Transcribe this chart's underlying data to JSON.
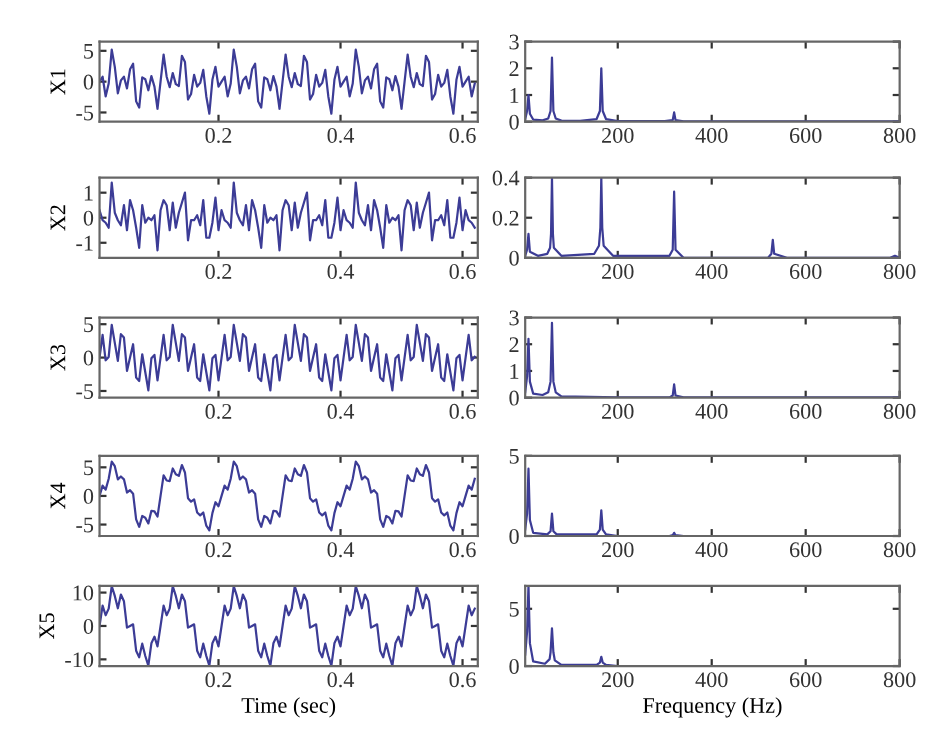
{
  "chart_data": [
    {
      "type": "line",
      "ylabel": "X1",
      "color": "#3c3c96",
      "xlim": [
        0.005,
        0.625
      ],
      "xticks": [
        0.2,
        0.4,
        0.6
      ],
      "ylim": [
        -6.5,
        6.5
      ],
      "yticks": [
        -5,
        0,
        5
      ],
      "x": [
        0.005,
        0.01,
        0.015,
        0.02,
        0.025,
        0.03,
        0.035,
        0.04,
        0.045,
        0.05,
        0.055,
        0.06,
        0.065,
        0.07,
        0.075,
        0.08,
        0.085,
        0.09,
        0.095,
        0.1,
        0.105,
        0.11,
        0.115,
        0.12,
        0.125,
        0.13,
        0.135,
        0.14,
        0.145,
        0.15,
        0.155,
        0.16,
        0.165,
        0.17,
        0.175,
        0.18,
        0.185,
        0.19,
        0.195,
        0.2,
        0.205,
        0.21,
        0.215,
        0.22,
        0.225,
        0.23,
        0.235,
        0.24,
        0.245,
        0.25,
        0.255,
        0.26,
        0.265,
        0.27,
        0.275,
        0.28,
        0.285,
        0.29,
        0.295,
        0.3,
        0.305,
        0.31,
        0.315,
        0.32,
        0.325,
        0.33,
        0.335,
        0.34,
        0.345,
        0.35,
        0.355,
        0.36,
        0.365,
        0.37,
        0.375,
        0.38,
        0.385,
        0.39,
        0.395,
        0.4,
        0.405,
        0.41,
        0.415,
        0.42,
        0.425,
        0.43,
        0.435,
        0.44,
        0.445,
        0.45,
        0.455,
        0.46,
        0.465,
        0.47,
        0.475,
        0.48,
        0.485,
        0.49,
        0.495,
        0.5,
        0.505,
        0.51,
        0.515,
        0.52,
        0.525,
        0.53,
        0.535,
        0.54,
        0.545,
        0.55,
        0.555,
        0.56,
        0.565,
        0.57,
        0.575,
        0.58,
        0.585,
        0.59,
        0.595,
        0.6,
        0.605,
        0.61,
        0.615,
        0.62
      ],
      "values": [
        0,
        0.8,
        -2.4,
        -0.3,
        5.2,
        2.4,
        -1.9,
        0.2,
        0.8,
        -1.1,
        2,
        2.9,
        -3.2,
        -4.2,
        0.7,
        0.4,
        -1.4,
        0.9,
        -0.8,
        -4.4,
        0,
        4.4,
        0.8,
        -0.9,
        1.4,
        -0.4,
        -0.7,
        4.2,
        3.2,
        -2.9,
        -2,
        1.1,
        -0.8,
        -0.2,
        1.9,
        -2.4,
        -5.2,
        0.3,
        2.4,
        -0.8,
        0,
        0.8,
        -2.4,
        -0.3,
        5.2,
        2.4,
        -1.9,
        0.2,
        0.8,
        -1.1,
        2,
        2.9,
        -3.2,
        -4.2,
        0.7,
        0.4,
        -1.4,
        0.9,
        -0.8,
        -4.4,
        0,
        4.4,
        0.8,
        -0.9,
        1.4,
        -0.4,
        -0.7,
        4.2,
        3.2,
        -2.9,
        -2,
        1.1,
        -0.8,
        -0.2,
        1.9,
        -2.4,
        -5.2,
        0.3,
        2.4,
        -0.8,
        0,
        0.8,
        -2.4,
        -0.3,
        5.2,
        2.4,
        -1.9,
        0.2,
        0.8,
        -1.1,
        2,
        2.9,
        -3.2,
        -4.2,
        0.7,
        0.4,
        -1.4,
        0.9,
        -0.8,
        -4.4,
        0,
        4.4,
        0.8,
        -0.9,
        1.4,
        -0.4,
        -0.7,
        4.2,
        3.2,
        -2.9,
        -2,
        1.1,
        -0.8,
        -0.2,
        1.9,
        -2.4,
        -5.2,
        0.3,
        2.4,
        -0.8,
        0,
        0.8,
        -2.4,
        -0.3
      ]
    },
    {
      "type": "line",
      "color": "#3c3c96",
      "xlim": [
        3,
        800
      ],
      "xticks": [
        200,
        400,
        600,
        800
      ],
      "ylim": [
        0,
        3
      ],
      "yticks": [
        0,
        1,
        2,
        3
      ],
      "x": [
        3,
        7,
        10,
        13,
        20,
        40,
        52,
        57,
        60,
        63,
        68,
        80,
        120,
        155,
        162,
        165,
        168,
        175,
        200,
        300,
        317,
        320,
        323,
        340,
        800
      ],
      "values": [
        0.1,
        0.4,
        1.0,
        0.3,
        0.08,
        0.05,
        0.12,
        0.4,
        2.4,
        0.4,
        0.12,
        0.04,
        0.03,
        0.1,
        0.4,
        2.0,
        0.4,
        0.1,
        0.02,
        0.02,
        0.06,
        0.35,
        0.06,
        0.01,
        0.01
      ]
    },
    {
      "type": "line",
      "ylabel": "X2",
      "color": "#3c3c96",
      "xlim": [
        0.005,
        0.625
      ],
      "xticks": [
        0.2,
        0.4,
        0.6
      ],
      "ylim": [
        -1.6,
        1.6
      ],
      "yticks": [
        -1,
        0,
        1
      ],
      "x": [
        0.005,
        0.01,
        0.015,
        0.02,
        0.025,
        0.03,
        0.035,
        0.04,
        0.045,
        0.05,
        0.055,
        0.06,
        0.065,
        0.07,
        0.075,
        0.08,
        0.085,
        0.09,
        0.095,
        0.1,
        0.105,
        0.11,
        0.115,
        0.12,
        0.125,
        0.13,
        0.135,
        0.14,
        0.145,
        0.15,
        0.155,
        0.16,
        0.165,
        0.17,
        0.175,
        0.18,
        0.185,
        0.19,
        0.195,
        0.2,
        0.205,
        0.21,
        0.215,
        0.22,
        0.225,
        0.23,
        0.235,
        0.24,
        0.245,
        0.25,
        0.255,
        0.26,
        0.265,
        0.27,
        0.275,
        0.28,
        0.285,
        0.29,
        0.295,
        0.3,
        0.305,
        0.31,
        0.315,
        0.32,
        0.325,
        0.33,
        0.335,
        0.34,
        0.345,
        0.35,
        0.355,
        0.36,
        0.365,
        0.37,
        0.375,
        0.38,
        0.385,
        0.39,
        0.395,
        0.4,
        0.405,
        0.41,
        0.415,
        0.42,
        0.425,
        0.43,
        0.435,
        0.44,
        0.445,
        0.45,
        0.455,
        0.46,
        0.465,
        0.47,
        0.475,
        0.48,
        0.485,
        0.49,
        0.495,
        0.5,
        0.505,
        0.51,
        0.515,
        0.52,
        0.525,
        0.53,
        0.535,
        0.54,
        0.545,
        0.55,
        0.555,
        0.56,
        0.565,
        0.57,
        0.575,
        0.58,
        0.585,
        0.59,
        0.595,
        0.6,
        0.605,
        0.61,
        0.615,
        0.62
      ],
      "values": [
        0.3,
        -0.1,
        -0.2,
        -0.4,
        1.4,
        0.2,
        -0.1,
        -0.3,
        0.5,
        -0.5,
        0.7,
        0.3,
        -0.4,
        -1.2,
        0.5,
        -0.2,
        0,
        -0.1,
        0.1,
        -1.3,
        0.3,
        0.7,
        0.5,
        -0.5,
        0.6,
        -0.4,
        0.2,
        0.6,
        1.0,
        -0.9,
        -0.1,
        -0.1,
        0.1,
        -0.3,
        0.7,
        -0.8,
        -0.8,
        -0.2,
        0.8,
        -0.5,
        0.3,
        -0.1,
        -0.2,
        -0.4,
        1.4,
        0.2,
        -0.1,
        -0.3,
        0.5,
        -0.5,
        0.7,
        0.3,
        -0.4,
        -1.2,
        0.5,
        -0.2,
        0,
        -0.1,
        0.1,
        -1.3,
        0.3,
        0.7,
        0.5,
        -0.5,
        0.6,
        -0.4,
        0.2,
        0.6,
        1.0,
        -0.9,
        -0.1,
        -0.1,
        0.1,
        -0.3,
        0.7,
        -0.8,
        -0.8,
        -0.2,
        0.8,
        -0.5,
        0.3,
        -0.1,
        -0.2,
        -0.4,
        1.4,
        0.2,
        -0.1,
        -0.3,
        0.5,
        -0.5,
        0.7,
        0.3,
        -0.4,
        -1.2,
        0.5,
        -0.2,
        0,
        -0.1,
        0.1,
        -1.3,
        0.3,
        0.7,
        0.5,
        -0.5,
        0.6,
        -0.4,
        0.2,
        0.6,
        1.0,
        -0.9,
        -0.1,
        -0.1,
        0.1,
        -0.3,
        0.7,
        -0.8,
        -0.8,
        -0.2,
        0.8,
        -0.5,
        0.3,
        -0.1,
        -0.2,
        -0.4
      ]
    },
    {
      "type": "line",
      "color": "#3c3c96",
      "xlim": [
        3,
        800
      ],
      "xticks": [
        200,
        400,
        600,
        800
      ],
      "ylim": [
        0,
        0.4
      ],
      "yticks": [
        0,
        0.2,
        0.4
      ],
      "x": [
        3,
        7,
        10,
        13,
        30,
        50,
        56,
        58,
        60,
        62,
        64,
        80,
        150,
        160,
        163,
        165,
        167,
        170,
        190,
        310,
        317,
        320,
        323,
        340,
        520,
        527,
        530,
        533,
        560,
        780,
        790,
        800
      ],
      "values": [
        0.01,
        0.04,
        0.12,
        0.03,
        0.01,
        0.02,
        0.05,
        0.12,
        0.4,
        0.12,
        0.05,
        0.01,
        0.02,
        0.06,
        0.15,
        0.4,
        0.15,
        0.06,
        0.01,
        0.01,
        0.04,
        0.33,
        0.04,
        0,
        0,
        0.02,
        0.09,
        0.02,
        0,
        0,
        0.01,
        0
      ]
    },
    {
      "type": "line",
      "ylabel": "X3",
      "color": "#3c3c96",
      "xlim": [
        0.005,
        0.625
      ],
      "xticks": [
        0.2,
        0.4,
        0.6
      ],
      "ylim": [
        -6,
        6
      ],
      "yticks": [
        -5,
        0,
        5
      ],
      "x": [
        0.005,
        0.01,
        0.015,
        0.02,
        0.025,
        0.03,
        0.035,
        0.04,
        0.045,
        0.05,
        0.055,
        0.06,
        0.065,
        0.07,
        0.075,
        0.08,
        0.085,
        0.09,
        0.095,
        0.1,
        0.105,
        0.11,
        0.115,
        0.12,
        0.125,
        0.13,
        0.135,
        0.14,
        0.145,
        0.15,
        0.155,
        0.16,
        0.165,
        0.17,
        0.175,
        0.18,
        0.185,
        0.19,
        0.195,
        0.2,
        0.205,
        0.21,
        0.215,
        0.22,
        0.225,
        0.23,
        0.235,
        0.24,
        0.245,
        0.25,
        0.255,
        0.26,
        0.265,
        0.27,
        0.275,
        0.28,
        0.285,
        0.29,
        0.295,
        0.3,
        0.305,
        0.31,
        0.315,
        0.32,
        0.325,
        0.33,
        0.335,
        0.34,
        0.345,
        0.35,
        0.355,
        0.36,
        0.365,
        0.37,
        0.375,
        0.38,
        0.385,
        0.39,
        0.395,
        0.4,
        0.405,
        0.41,
        0.415,
        0.42,
        0.425,
        0.43,
        0.435,
        0.44,
        0.445,
        0.45,
        0.455,
        0.46,
        0.465,
        0.47,
        0.475,
        0.48,
        0.485,
        0.49,
        0.495,
        0.5,
        0.505,
        0.51,
        0.515,
        0.52,
        0.525,
        0.53,
        0.535,
        0.54,
        0.545,
        0.55,
        0.555,
        0.56,
        0.565,
        0.57,
        0.575,
        0.58,
        0.585,
        0.59,
        0.595,
        0.6,
        0.605,
        0.61,
        0.615,
        0.62
      ],
      "values": [
        0,
        3.4,
        -0.4,
        0.1,
        4.9,
        2.2,
        -0.5,
        3.5,
        3.0,
        -2.0,
        0,
        2.0,
        -3.0,
        -3.5,
        0.5,
        -2.2,
        -4.9,
        -0.1,
        0.4,
        -3.4,
        0,
        3.4,
        -0.4,
        0.1,
        4.9,
        2.2,
        -0.5,
        3.5,
        3.0,
        -2.0,
        0,
        2.0,
        -3.0,
        -3.5,
        0.5,
        -2.2,
        -4.9,
        -0.1,
        0.4,
        -3.4,
        0,
        3.4,
        -0.4,
        0.1,
        4.9,
        2.2,
        -0.5,
        3.5,
        3.0,
        -2.0,
        0,
        2.0,
        -3.0,
        -3.5,
        0.5,
        -2.2,
        -4.9,
        -0.1,
        0.4,
        -3.4,
        0,
        3.4,
        -0.4,
        0.1,
        4.9,
        2.2,
        -0.5,
        3.5,
        3.0,
        -2.0,
        0,
        2.0,
        -3.0,
        -3.5,
        0.5,
        -2.2,
        -4.9,
        -0.1,
        0.4,
        -3.4,
        0,
        3.4,
        -0.4,
        0.1,
        4.9,
        2.2,
        -0.5,
        3.5,
        3.0,
        -2.0,
        0,
        2.0,
        -3.0,
        -3.5,
        0.5,
        -2.2,
        -4.9,
        -0.1,
        0.4,
        -3.4,
        0,
        3.4,
        -0.4,
        0.1,
        4.9,
        2.2,
        -0.5,
        3.5,
        3.0,
        -2.0,
        0,
        2.0,
        -3.0,
        -3.5,
        0.5,
        -2.2,
        -4.9,
        -0.1,
        0.4,
        -3.4,
        0,
        3.4,
        -0.4,
        0.1
      ]
    },
    {
      "type": "line",
      "color": "#3c3c96",
      "xlim": [
        3,
        800
      ],
      "xticks": [
        200,
        400,
        600,
        800
      ],
      "ylim": [
        0,
        3
      ],
      "yticks": [
        0,
        1,
        2,
        3
      ],
      "x": [
        3,
        7,
        10,
        13,
        20,
        40,
        52,
        57,
        60,
        63,
        68,
        80,
        200,
        310,
        317,
        320,
        323,
        340,
        800
      ],
      "values": [
        0.2,
        0.8,
        2.2,
        0.6,
        0.15,
        0.1,
        0.2,
        0.6,
        2.8,
        0.6,
        0.2,
        0.05,
        0.01,
        0.01,
        0.08,
        0.5,
        0.08,
        0.01,
        0.01
      ]
    },
    {
      "type": "line",
      "ylabel": "X4",
      "color": "#3c3c96",
      "xlim": [
        0.005,
        0.625
      ],
      "xticks": [
        0.2,
        0.4,
        0.6
      ],
      "ylim": [
        -7,
        7
      ],
      "yticks": [
        -5,
        0,
        5
      ],
      "x": [
        0.005,
        0.01,
        0.015,
        0.02,
        0.025,
        0.03,
        0.035,
        0.04,
        0.045,
        0.05,
        0.055,
        0.06,
        0.065,
        0.07,
        0.075,
        0.08,
        0.085,
        0.09,
        0.095,
        0.1,
        0.105,
        0.11,
        0.115,
        0.12,
        0.125,
        0.13,
        0.135,
        0.14,
        0.145,
        0.15,
        0.155,
        0.16,
        0.165,
        0.17,
        0.175,
        0.18,
        0.185,
        0.19,
        0.195,
        0.2,
        0.205,
        0.21,
        0.215,
        0.22,
        0.225,
        0.23,
        0.235,
        0.24,
        0.245,
        0.25,
        0.255,
        0.26,
        0.265,
        0.27,
        0.275,
        0.28,
        0.285,
        0.29,
        0.295,
        0.3,
        0.305,
        0.31,
        0.315,
        0.32,
        0.325,
        0.33,
        0.335,
        0.34,
        0.345,
        0.35,
        0.355,
        0.36,
        0.365,
        0.37,
        0.375,
        0.38,
        0.385,
        0.39,
        0.395,
        0.4,
        0.405,
        0.41,
        0.415,
        0.42,
        0.425,
        0.43,
        0.435,
        0.44,
        0.445,
        0.45,
        0.455,
        0.46,
        0.465,
        0.47,
        0.475,
        0.48,
        0.485,
        0.49,
        0.495,
        0.5,
        0.505,
        0.51,
        0.515,
        0.52,
        0.525,
        0.53,
        0.535,
        0.54,
        0.545,
        0.55,
        0.555,
        0.56,
        0.565,
        0.57,
        0.575,
        0.58,
        0.585,
        0.59,
        0.595,
        0.6,
        0.605,
        0.61,
        0.615,
        0.62
      ],
      "values": [
        0,
        1.8,
        1.1,
        3.0,
        6.0,
        5.2,
        2.9,
        3.4,
        2.9,
        0.6,
        1.0,
        0.4,
        -4.1,
        -5.4,
        -3.5,
        -3.8,
        -4.8,
        -2.6,
        -2.7,
        -3.6,
        0,
        3.6,
        2.7,
        2.6,
        4.8,
        3.8,
        3.5,
        5.4,
        4.1,
        -0.4,
        -1.0,
        -0.6,
        -2.9,
        -3.4,
        -2.9,
        -5.2,
        -6.0,
        -3.0,
        -1.1,
        -1.8,
        0,
        1.8,
        1.1,
        3.0,
        6.0,
        5.2,
        2.9,
        3.4,
        2.9,
        0.6,
        1.0,
        0.4,
        -4.1,
        -5.4,
        -3.5,
        -3.8,
        -4.8,
        -2.6,
        -2.7,
        -3.6,
        0,
        3.6,
        2.7,
        2.6,
        4.8,
        3.8,
        3.5,
        5.4,
        4.1,
        -0.4,
        -1.0,
        -0.6,
        -2.9,
        -3.4,
        -2.9,
        -5.2,
        -6.0,
        -3.0,
        -1.1,
        -1.8,
        0,
        1.8,
        1.1,
        3.0,
        6.0,
        5.2,
        2.9,
        3.4,
        2.9,
        0.6,
        1.0,
        0.4,
        -4.1,
        -5.4,
        -3.5,
        -3.8,
        -4.8,
        -2.6,
        -2.7,
        -3.6,
        0,
        3.6,
        2.7,
        2.6,
        4.8,
        3.8,
        3.5,
        5.4,
        4.1,
        -0.4,
        -1.0,
        -0.6,
        -2.9,
        -3.4,
        -2.9,
        -5.2,
        -6.0,
        -3.0,
        -1.1,
        -1.8,
        0,
        1.8,
        1.1,
        3.0
      ]
    },
    {
      "type": "line",
      "color": "#3c3c96",
      "xlim": [
        3,
        800
      ],
      "xticks": [
        200,
        400,
        600,
        800
      ],
      "ylim": [
        0,
        5
      ],
      "yticks": [
        0,
        5
      ],
      "x": [
        3,
        7,
        10,
        13,
        20,
        50,
        57,
        60,
        63,
        70,
        155,
        162,
        165,
        168,
        175,
        200,
        310,
        317,
        320,
        323,
        340,
        800
      ],
      "values": [
        0.4,
        1.4,
        4.2,
        1.0,
        0.2,
        0.1,
        0.3,
        1.4,
        0.3,
        0.1,
        0.1,
        0.4,
        1.6,
        0.4,
        0.1,
        0,
        0,
        0.05,
        0.2,
        0.05,
        0,
        0
      ]
    },
    {
      "type": "line",
      "ylabel": "X5",
      "xlabel": "Time (sec)",
      "color": "#3c3c96",
      "xlim": [
        0.005,
        0.625
      ],
      "xticks": [
        0.2,
        0.4,
        0.6
      ],
      "ylim": [
        -12,
        12
      ],
      "yticks": [
        -10,
        0,
        10
      ],
      "x": [
        0.005,
        0.01,
        0.015,
        0.02,
        0.025,
        0.03,
        0.035,
        0.04,
        0.045,
        0.05,
        0.055,
        0.06,
        0.065,
        0.07,
        0.075,
        0.08,
        0.085,
        0.09,
        0.095,
        0.1,
        0.105,
        0.11,
        0.115,
        0.12,
        0.125,
        0.13,
        0.135,
        0.14,
        0.145,
        0.15,
        0.155,
        0.16,
        0.165,
        0.17,
        0.175,
        0.18,
        0.185,
        0.19,
        0.195,
        0.2,
        0.205,
        0.21,
        0.215,
        0.22,
        0.225,
        0.23,
        0.235,
        0.24,
        0.245,
        0.25,
        0.255,
        0.26,
        0.265,
        0.27,
        0.275,
        0.28,
        0.285,
        0.29,
        0.295,
        0.3,
        0.305,
        0.31,
        0.315,
        0.32,
        0.325,
        0.33,
        0.335,
        0.34,
        0.345,
        0.35,
        0.355,
        0.36,
        0.365,
        0.37,
        0.375,
        0.38,
        0.385,
        0.39,
        0.395,
        0.4,
        0.405,
        0.41,
        0.415,
        0.42,
        0.425,
        0.43,
        0.435,
        0.44,
        0.445,
        0.45,
        0.455,
        0.46,
        0.465,
        0.47,
        0.475,
        0.48,
        0.485,
        0.49,
        0.495,
        0.5,
        0.505,
        0.51,
        0.515,
        0.52,
        0.525,
        0.53,
        0.535,
        0.54,
        0.545,
        0.55,
        0.555,
        0.56,
        0.565,
        0.57,
        0.575,
        0.58,
        0.585,
        0.59,
        0.595,
        0.6,
        0.605,
        0.61,
        0.615,
        0.62
      ],
      "values": [
        0,
        6.1,
        3.2,
        5.2,
        11.9,
        9,
        5.3,
        9.4,
        7.4,
        -0.5,
        0,
        0.5,
        -7.4,
        -9.4,
        -5.3,
        -9,
        -11.9,
        -5.2,
        -3.2,
        -6.1,
        0,
        6.1,
        3.2,
        5.2,
        11.9,
        9,
        5.3,
        9.4,
        7.4,
        -0.5,
        0,
        0.5,
        -7.4,
        -9.4,
        -5.3,
        -9,
        -11.9,
        -5.2,
        -3.2,
        -6.1,
        0,
        6.1,
        3.2,
        5.2,
        11.9,
        9,
        5.3,
        9.4,
        7.4,
        -0.5,
        0,
        0.5,
        -7.4,
        -9.4,
        -5.3,
        -9,
        -11.9,
        -5.2,
        -3.2,
        -6.1,
        0,
        6.1,
        3.2,
        5.2,
        11.9,
        9,
        5.3,
        9.4,
        7.4,
        -0.5,
        0,
        0.5,
        -7.4,
        -9.4,
        -5.3,
        -9,
        -11.9,
        -5.2,
        -3.2,
        -6.1,
        0,
        6.1,
        3.2,
        5.2,
        11.9,
        9,
        5.3,
        9.4,
        7.4,
        -0.5,
        0,
        0.5,
        -7.4,
        -9.4,
        -5.3,
        -9,
        -11.9,
        -5.2,
        -3.2,
        -6.1,
        0,
        6.1,
        3.2,
        5.2,
        11.9,
        9,
        5.3,
        9.4,
        7.4,
        -0.5,
        0,
        0.5,
        -7.4,
        -9.4,
        -5.3,
        -9,
        -11.9,
        -5.2,
        -3.2,
        -6.1,
        0,
        6.1,
        3.2,
        5.2
      ]
    },
    {
      "type": "line",
      "xlabel": "Frequency (Hz)",
      "color": "#3c3c96",
      "xlim": [
        3,
        800
      ],
      "xticks": [
        200,
        400,
        600,
        800
      ],
      "ylim": [
        0,
        7
      ],
      "yticks": [
        0,
        5
      ],
      "x": [
        3,
        7,
        10,
        13,
        20,
        45,
        55,
        57,
        60,
        63,
        66,
        80,
        155,
        162,
        165,
        168,
        175,
        200,
        800
      ],
      "values": [
        1.0,
        3.0,
        7.0,
        2.0,
        0.4,
        0.2,
        0.6,
        1.2,
        3.3,
        1.2,
        0.5,
        0.1,
        0.1,
        0.3,
        0.8,
        0.3,
        0.1,
        0,
        0
      ]
    }
  ]
}
